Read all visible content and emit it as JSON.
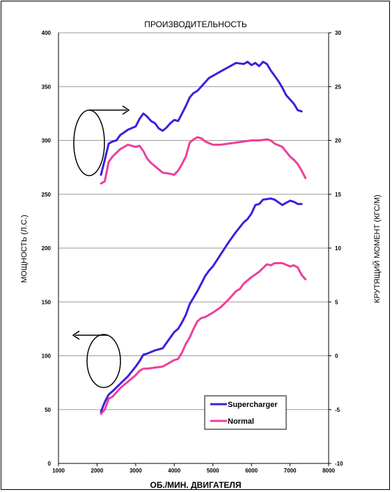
{
  "chart_data": {
    "type": "line",
    "title": "ПРОИЗВОДИТЕЛЬНОСТЬ",
    "xlabel": "ОБ./МИН. ДВИГАТЕЛЯ",
    "ylabel": "МОЩНОСТЬ (Л.С.)",
    "ylabel_right": "КРУТЯЩИЙ МОМЕНТ (КГС/М)",
    "xlim": [
      1000,
      8000
    ],
    "ylim": [
      0,
      400
    ],
    "ylim_right": [
      -10,
      30
    ],
    "x_ticks": [
      "1000",
      "2000",
      "3000",
      "4000",
      "5000",
      "6000",
      "7000",
      "8000"
    ],
    "y_ticks": [
      "0",
      "50",
      "100",
      "150",
      "200",
      "250",
      "300",
      "350",
      "400"
    ],
    "y_right_ticks": [
      "-10",
      "-5",
      "0",
      "5",
      "10",
      "15",
      "20",
      "25",
      "30"
    ],
    "grid": "horizontal",
    "legend": "lower-right",
    "colors": {
      "supercharger": "#3d1fdc",
      "normal": "#ee3e9c"
    },
    "series": [
      {
        "name": "Supercharger",
        "kind": "power",
        "axis": "left",
        "color": "#3d1fdc",
        "points": [
          [
            2100,
            48
          ],
          [
            2200,
            57
          ],
          [
            2300,
            64
          ],
          [
            2400,
            67
          ],
          [
            2600,
            74
          ],
          [
            2800,
            81
          ],
          [
            3000,
            90
          ],
          [
            3100,
            95
          ],
          [
            3200,
            101
          ],
          [
            3300,
            102
          ],
          [
            3500,
            105
          ],
          [
            3700,
            107
          ],
          [
            3900,
            117
          ],
          [
            4000,
            122
          ],
          [
            4100,
            125
          ],
          [
            4200,
            131
          ],
          [
            4300,
            138
          ],
          [
            4400,
            148
          ],
          [
            4500,
            154
          ],
          [
            4600,
            160
          ],
          [
            4700,
            167
          ],
          [
            4800,
            174
          ],
          [
            4900,
            179
          ],
          [
            5000,
            183
          ],
          [
            5200,
            194
          ],
          [
            5400,
            205
          ],
          [
            5600,
            215
          ],
          [
            5800,
            224
          ],
          [
            5900,
            227
          ],
          [
            6000,
            232
          ],
          [
            6100,
            240
          ],
          [
            6200,
            241
          ],
          [
            6300,
            245
          ],
          [
            6500,
            246
          ],
          [
            6600,
            245
          ],
          [
            6800,
            240
          ],
          [
            6900,
            242
          ],
          [
            7000,
            244
          ],
          [
            7100,
            243
          ],
          [
            7200,
            241
          ],
          [
            7300,
            241
          ]
        ]
      },
      {
        "name": "Normal",
        "kind": "power",
        "axis": "left",
        "color": "#ee3e9c",
        "points": [
          [
            2100,
            46
          ],
          [
            2200,
            50
          ],
          [
            2300,
            60
          ],
          [
            2400,
            62
          ],
          [
            2600,
            70
          ],
          [
            2800,
            76
          ],
          [
            3000,
            82
          ],
          [
            3100,
            86
          ],
          [
            3200,
            88
          ],
          [
            3300,
            88
          ],
          [
            3500,
            89
          ],
          [
            3700,
            90
          ],
          [
            3900,
            94
          ],
          [
            4000,
            96
          ],
          [
            4100,
            97
          ],
          [
            4200,
            103
          ],
          [
            4300,
            111
          ],
          [
            4400,
            117
          ],
          [
            4500,
            125
          ],
          [
            4600,
            132
          ],
          [
            4700,
            135
          ],
          [
            4800,
            136
          ],
          [
            5000,
            140
          ],
          [
            5200,
            145
          ],
          [
            5400,
            152
          ],
          [
            5600,
            160
          ],
          [
            5700,
            162
          ],
          [
            5800,
            167
          ],
          [
            6000,
            173
          ],
          [
            6200,
            178
          ],
          [
            6400,
            185
          ],
          [
            6500,
            184
          ],
          [
            6600,
            186
          ],
          [
            6800,
            186
          ],
          [
            7000,
            183
          ],
          [
            7100,
            184
          ],
          [
            7200,
            182
          ],
          [
            7300,
            175
          ],
          [
            7400,
            171
          ]
        ]
      },
      {
        "name": "Supercharger",
        "kind": "torque",
        "axis": "right",
        "color": "#3d1fdc",
        "points": [
          [
            2100,
            16.8
          ],
          [
            2200,
            18.2
          ],
          [
            2300,
            19.7
          ],
          [
            2400,
            19.9
          ],
          [
            2500,
            20.0
          ],
          [
            2600,
            20.5
          ],
          [
            2800,
            21.0
          ],
          [
            3000,
            21.3
          ],
          [
            3100,
            22.0
          ],
          [
            3200,
            22.5
          ],
          [
            3300,
            22.2
          ],
          [
            3400,
            21.8
          ],
          [
            3500,
            21.6
          ],
          [
            3600,
            21.1
          ],
          [
            3700,
            20.9
          ],
          [
            3800,
            21.2
          ],
          [
            3900,
            21.6
          ],
          [
            4000,
            21.9
          ],
          [
            4100,
            21.8
          ],
          [
            4200,
            22.5
          ],
          [
            4300,
            23.2
          ],
          [
            4400,
            24.0
          ],
          [
            4500,
            24.4
          ],
          [
            4600,
            24.6
          ],
          [
            4700,
            25.0
          ],
          [
            4800,
            25.4
          ],
          [
            4900,
            25.8
          ],
          [
            5000,
            26.0
          ],
          [
            5200,
            26.4
          ],
          [
            5400,
            26.8
          ],
          [
            5600,
            27.2
          ],
          [
            5800,
            27.1
          ],
          [
            5900,
            27.3
          ],
          [
            6000,
            27.0
          ],
          [
            6100,
            27.2
          ],
          [
            6200,
            26.9
          ],
          [
            6300,
            27.3
          ],
          [
            6400,
            27.1
          ],
          [
            6500,
            26.5
          ],
          [
            6600,
            26.0
          ],
          [
            6700,
            25.5
          ],
          [
            6800,
            24.9
          ],
          [
            6900,
            24.2
          ],
          [
            7000,
            23.8
          ],
          [
            7100,
            23.4
          ],
          [
            7200,
            22.8
          ],
          [
            7300,
            22.7
          ]
        ]
      },
      {
        "name": "Normal",
        "kind": "torque",
        "axis": "right",
        "color": "#ee3e9c",
        "points": [
          [
            2100,
            16.0
          ],
          [
            2200,
            16.2
          ],
          [
            2300,
            18.0
          ],
          [
            2400,
            18.5
          ],
          [
            2600,
            19.2
          ],
          [
            2800,
            19.6
          ],
          [
            3000,
            19.4
          ],
          [
            3100,
            19.5
          ],
          [
            3200,
            19.0
          ],
          [
            3300,
            18.3
          ],
          [
            3400,
            17.9
          ],
          [
            3500,
            17.6
          ],
          [
            3700,
            17.0
          ],
          [
            3900,
            16.9
          ],
          [
            4000,
            16.8
          ],
          [
            4100,
            17.2
          ],
          [
            4200,
            17.8
          ],
          [
            4300,
            18.5
          ],
          [
            4400,
            19.8
          ],
          [
            4500,
            20.1
          ],
          [
            4600,
            20.3
          ],
          [
            4700,
            20.2
          ],
          [
            4800,
            19.9
          ],
          [
            5000,
            19.6
          ],
          [
            5200,
            19.6
          ],
          [
            5400,
            19.7
          ],
          [
            5600,
            19.8
          ],
          [
            5800,
            19.9
          ],
          [
            6000,
            20.0
          ],
          [
            6200,
            20.0
          ],
          [
            6400,
            20.1
          ],
          [
            6500,
            20.0
          ],
          [
            6600,
            19.7
          ],
          [
            6800,
            19.4
          ],
          [
            7000,
            18.5
          ],
          [
            7100,
            18.2
          ],
          [
            7200,
            17.8
          ],
          [
            7300,
            17.2
          ],
          [
            7400,
            16.5
          ]
        ]
      }
    ]
  }
}
